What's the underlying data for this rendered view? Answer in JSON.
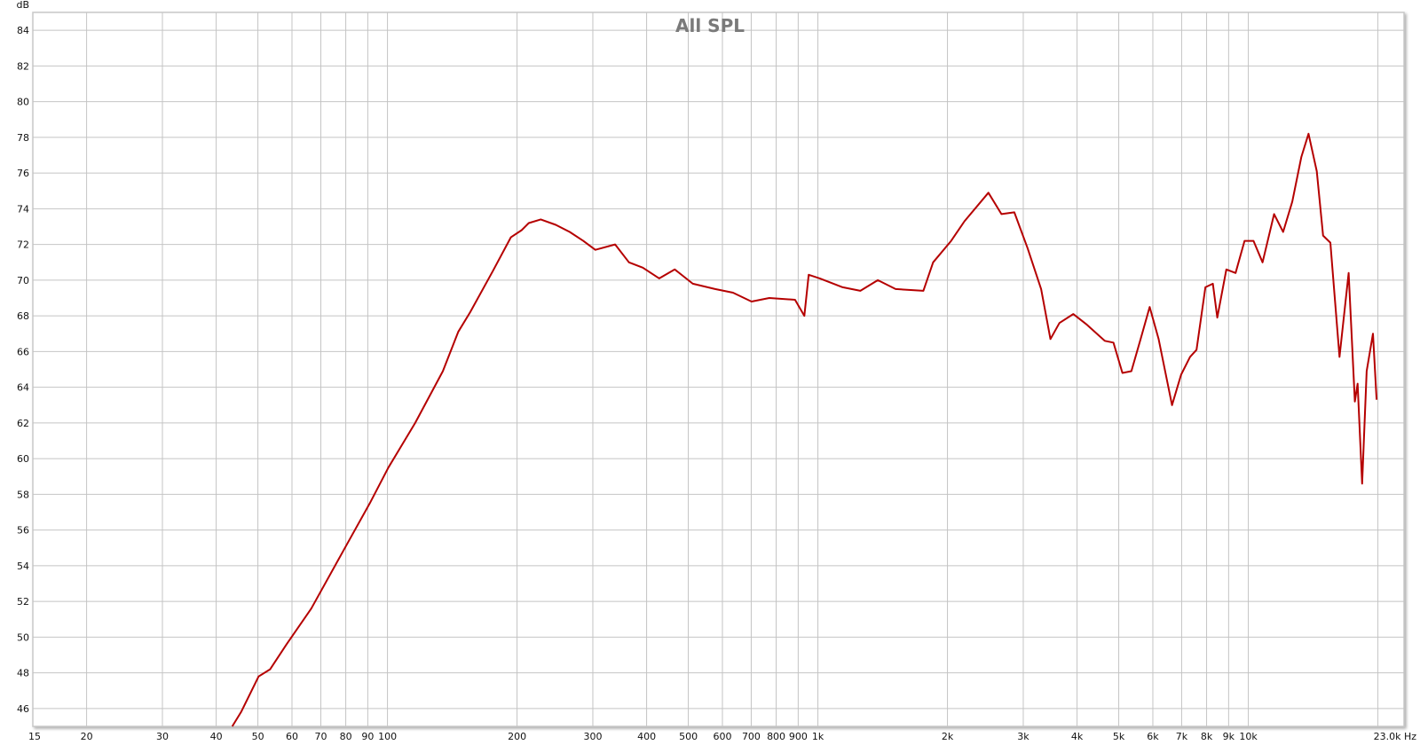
{
  "chart_data": {
    "type": "line",
    "title": "All SPL",
    "ylabel": "dB",
    "xlabel": "Hz",
    "x_scale": "log",
    "xlim": [
      15,
      23000
    ],
    "ylim": [
      45,
      85
    ],
    "grid": true,
    "x_ticks": [
      {
        "v": 15,
        "label": "15"
      },
      {
        "v": 20,
        "label": "20"
      },
      {
        "v": 30,
        "label": "30"
      },
      {
        "v": 40,
        "label": "40"
      },
      {
        "v": 50,
        "label": "50"
      },
      {
        "v": 60,
        "label": "60"
      },
      {
        "v": 70,
        "label": "70"
      },
      {
        "v": 80,
        "label": "80"
      },
      {
        "v": 90,
        "label": "90"
      },
      {
        "v": 100,
        "label": "100"
      },
      {
        "v": 200,
        "label": "200"
      },
      {
        "v": 300,
        "label": "300"
      },
      {
        "v": 400,
        "label": "400"
      },
      {
        "v": 500,
        "label": "500"
      },
      {
        "v": 600,
        "label": "600"
      },
      {
        "v": 700,
        "label": "700"
      },
      {
        "v": 800,
        "label": "800"
      },
      {
        "v": 900,
        "label": "900"
      },
      {
        "v": 1000,
        "label": "1k"
      },
      {
        "v": 2000,
        "label": "2k"
      },
      {
        "v": 3000,
        "label": "3k"
      },
      {
        "v": 4000,
        "label": "4k"
      },
      {
        "v": 5000,
        "label": "5k"
      },
      {
        "v": 6000,
        "label": "6k"
      },
      {
        "v": 7000,
        "label": "7k"
      },
      {
        "v": 8000,
        "label": "8k"
      },
      {
        "v": 9000,
        "label": "9k"
      },
      {
        "v": 10000,
        "label": "10k"
      },
      {
        "v": 20000,
        "label": ""
      },
      {
        "v": 23000,
        "label": "23.0k Hz"
      }
    ],
    "y_ticks": [
      46,
      48,
      50,
      52,
      54,
      56,
      58,
      60,
      62,
      64,
      66,
      68,
      70,
      72,
      74,
      76,
      78,
      80,
      82,
      84
    ],
    "series": [
      {
        "color": "#b50000",
        "x": [
          43.6,
          45.7,
          50.2,
          53.4,
          58.3,
          66.5,
          78.8,
          91,
          100.5,
          116,
          134.5,
          146,
          155.6,
          175.6,
          193.5,
          205,
          213,
          227,
          246,
          265,
          285,
          304,
          338,
          364,
          392,
          428,
          465,
          512,
          577,
          635,
          701,
          771,
          885,
          930,
          952,
          1010,
          1142,
          1255,
          1378,
          1515,
          1758,
          1852,
          2040,
          2190,
          2490,
          2670,
          2860,
          3070,
          3300,
          3470,
          3640,
          3920,
          4220,
          4640,
          4860,
          5100,
          5350,
          5620,
          5900,
          6190,
          6650,
          6980,
          7320,
          7580,
          7950,
          8270,
          8470,
          8890,
          9340,
          9800,
          10280,
          10790,
          11480,
          12050,
          12650,
          13280,
          13800,
          14420,
          14920,
          15510,
          16290,
          17100,
          17680,
          17940,
          18380,
          18830,
          19480,
          19860
        ],
        "y": [
          45.0,
          45.8,
          47.8,
          48.2,
          49.6,
          51.6,
          54.8,
          57.5,
          59.5,
          62.0,
          64.9,
          67.1,
          68.2,
          70.5,
          72.4,
          72.8,
          73.2,
          73.4,
          73.1,
          72.7,
          72.2,
          71.7,
          72.0,
          71.0,
          70.7,
          70.1,
          70.6,
          69.8,
          69.5,
          69.3,
          68.8,
          69.0,
          68.9,
          68.0,
          70.3,
          70.1,
          69.6,
          69.4,
          70.0,
          69.5,
          69.4,
          71.0,
          72.2,
          73.3,
          74.9,
          73.7,
          73.8,
          71.8,
          69.5,
          66.7,
          67.6,
          68.1,
          67.5,
          66.6,
          66.5,
          64.8,
          64.9,
          66.7,
          68.5,
          66.7,
          63.0,
          64.7,
          65.7,
          66.1,
          69.6,
          69.8,
          67.9,
          70.6,
          70.4,
          72.2,
          72.2,
          71.0,
          73.7,
          72.7,
          74.4,
          76.9,
          78.2,
          76.1,
          72.5,
          72.1,
          65.7,
          70.4,
          63.2,
          64.2,
          58.6,
          64.9,
          67.0,
          63.3
        ]
      }
    ]
  }
}
